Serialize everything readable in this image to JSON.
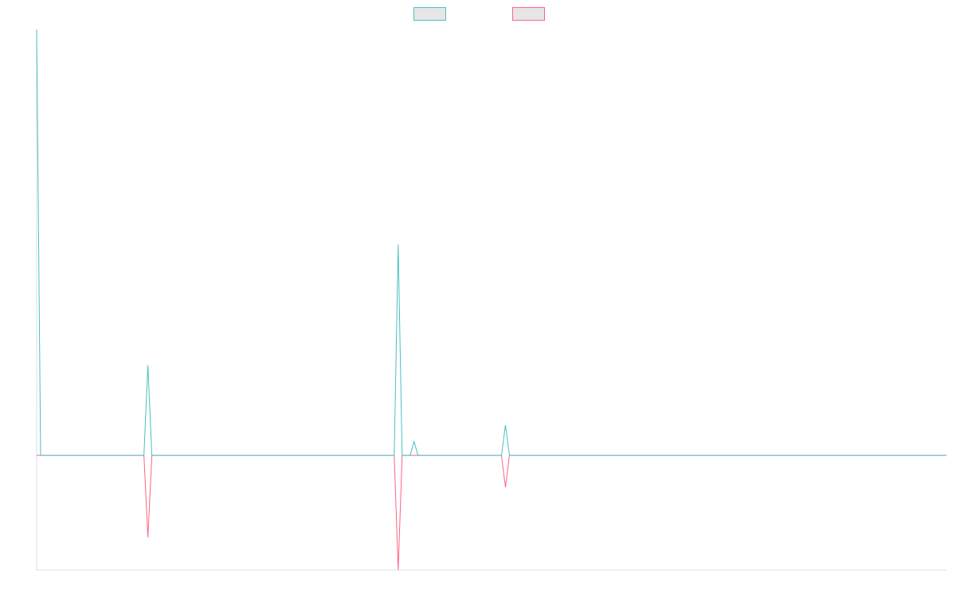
{
  "chart_data": {
    "type": "line",
    "ylim": [
      -26.9,
      100
    ],
    "legend": "top",
    "series": [
      {
        "color": "#4bc0c0",
        "values": [
          100,
          0,
          0,
          0,
          0,
          0,
          0,
          0,
          0,
          0,
          0,
          0,
          0,
          0,
          0,
          0,
          0,
          0,
          0,
          0,
          0,
          0,
          0,
          0,
          0,
          0,
          0,
          0,
          21.1,
          0,
          0,
          0,
          0,
          0,
          0,
          0,
          0,
          0,
          0,
          0,
          0,
          0,
          0,
          0,
          0,
          0,
          0,
          0,
          0,
          0,
          0,
          0,
          0,
          0,
          0,
          0,
          0,
          0,
          0,
          0,
          0,
          0,
          0,
          0,
          0,
          0,
          0,
          0,
          0,
          0,
          0,
          0,
          0,
          0,
          0,
          0,
          0,
          0,
          0,
          0,
          0,
          0,
          0,
          0,
          0,
          0,
          0,
          0,
          0,
          0,
          0,
          49.5,
          0,
          0,
          0,
          3.2,
          0,
          0,
          0,
          0,
          0,
          0,
          0,
          0,
          0,
          0,
          0,
          0,
          0,
          0,
          0,
          0,
          0,
          0,
          0,
          0,
          0,
          0,
          7.1,
          0,
          0,
          0,
          0,
          0,
          0,
          0,
          0,
          0,
          0,
          0,
          0,
          0,
          0,
          0,
          0,
          0,
          0,
          0,
          0,
          0,
          0,
          0,
          0,
          0,
          0,
          0,
          0,
          0,
          0,
          0,
          0,
          0,
          0,
          0,
          0,
          0,
          0,
          0,
          0,
          0,
          0,
          0,
          0,
          0,
          0,
          0,
          0,
          0,
          0,
          0,
          0,
          0,
          0,
          0,
          0,
          0,
          0,
          0,
          0,
          0,
          0,
          0,
          0,
          0,
          0,
          0,
          0,
          0,
          0,
          0,
          0,
          0,
          0,
          0,
          0,
          0,
          0,
          0,
          0,
          0,
          0,
          0,
          0,
          0,
          0,
          0,
          0,
          0,
          0,
          0,
          0,
          0,
          0,
          0,
          0,
          0,
          0,
          0,
          0,
          0,
          0,
          0,
          0,
          0,
          0,
          0,
          0,
          0,
          0,
          0
        ]
      },
      {
        "color": "#ff6384",
        "values": [
          0,
          0,
          0,
          0,
          0,
          0,
          0,
          0,
          0,
          0,
          0,
          0,
          0,
          0,
          0,
          0,
          0,
          0,
          0,
          0,
          0,
          0,
          0,
          0,
          0,
          0,
          0,
          0,
          -19.3,
          0,
          0,
          0,
          0,
          0,
          0,
          0,
          0,
          0,
          0,
          0,
          0,
          0,
          0,
          0,
          0,
          0,
          0,
          0,
          0,
          0,
          0,
          0,
          0,
          0,
          0,
          0,
          0,
          0,
          0,
          0,
          0,
          0,
          0,
          0,
          0,
          0,
          0,
          0,
          0,
          0,
          0,
          0,
          0,
          0,
          0,
          0,
          0,
          0,
          0,
          0,
          0,
          0,
          0,
          0,
          0,
          0,
          0,
          0,
          0,
          0,
          0,
          -26.9,
          0,
          0,
          0,
          0,
          0,
          0,
          0,
          0,
          0,
          0,
          0,
          0,
          0,
          0,
          0,
          0,
          0,
          0,
          0,
          0,
          0,
          0,
          0,
          0,
          0,
          0,
          -7.5,
          0,
          0,
          0,
          0,
          0,
          0,
          0,
          0,
          0,
          0,
          0,
          0,
          0,
          0,
          0,
          0,
          0,
          0,
          0,
          0,
          0,
          0,
          0,
          0,
          0,
          0,
          0,
          0,
          0,
          0,
          0,
          0,
          0,
          0,
          0,
          0,
          0,
          0,
          0,
          0,
          0,
          0,
          0,
          0,
          0,
          0,
          0,
          0,
          0,
          0,
          0,
          0,
          0,
          0,
          0,
          0,
          0,
          0,
          0,
          0,
          0,
          0,
          0,
          0,
          0,
          0,
          0,
          0,
          0,
          0,
          0,
          0,
          0,
          0,
          0,
          0,
          0,
          0,
          0,
          0,
          0,
          0,
          0,
          0,
          0,
          0,
          0,
          0,
          0,
          0,
          0,
          0,
          0,
          0,
          0,
          0,
          0,
          0,
          0,
          0,
          0,
          0,
          0,
          0,
          0,
          0,
          0,
          0,
          0,
          0,
          0
        ]
      }
    ]
  }
}
